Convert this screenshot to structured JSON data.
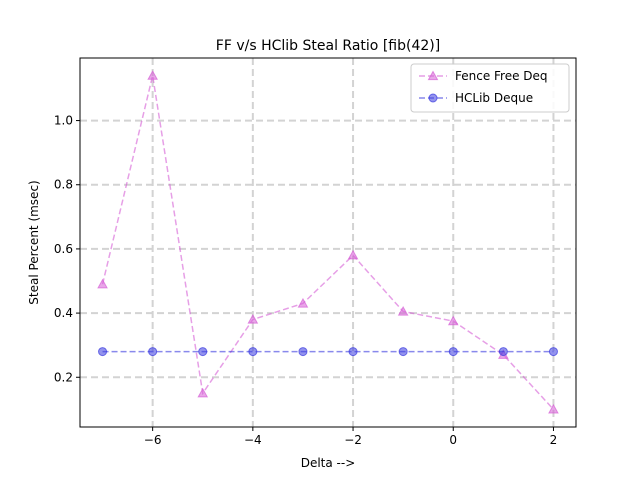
{
  "chart_data": {
    "type": "line",
    "title": "FF v/s HClib Steal Ratio [fib(42)]",
    "xlabel": "Delta -->",
    "ylabel": "Steal Percent (msec)",
    "xlim": [
      -7.45,
      2.45
    ],
    "ylim": [
      0.045,
      1.195
    ],
    "x_ticks": [
      -6,
      -4,
      -2,
      0,
      2
    ],
    "x_tick_labels": [
      "−6",
      "−4",
      "−2",
      "0",
      "2"
    ],
    "y_ticks": [
      0.2,
      0.4,
      0.6,
      0.8,
      1.0
    ],
    "y_tick_labels": [
      "0.2",
      "0.4",
      "0.6",
      "0.8",
      "1.0"
    ],
    "grid": true,
    "legend_position": "top-right",
    "series": [
      {
        "name": "Fence Free Deq",
        "color": "#d65fd6",
        "marker": "triangle",
        "linestyle": "dashed",
        "x": [
          -7,
          -6,
          -5,
          -4,
          -3,
          -2,
          -1,
          0,
          1,
          2
        ],
        "y": [
          0.49,
          1.14,
          0.15,
          0.38,
          0.43,
          0.58,
          0.405,
          0.375,
          0.27,
          0.1
        ]
      },
      {
        "name": "HCLib Deque",
        "color": "#3b3bdf",
        "marker": "circle",
        "linestyle": "dashed",
        "x": [
          -7,
          -6,
          -5,
          -4,
          -3,
          -2,
          -1,
          0,
          1,
          2
        ],
        "y": [
          0.28,
          0.28,
          0.28,
          0.28,
          0.28,
          0.28,
          0.28,
          0.28,
          0.28,
          0.28
        ]
      }
    ]
  }
}
